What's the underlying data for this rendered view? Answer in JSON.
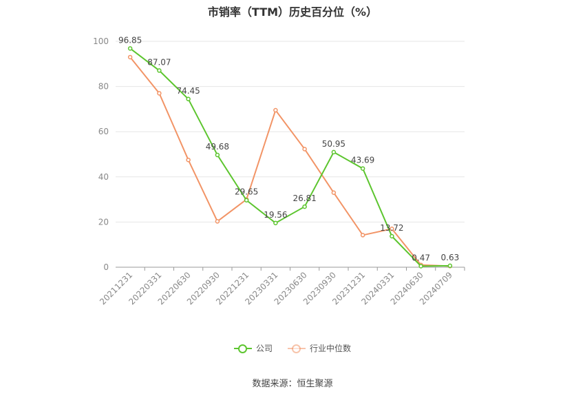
{
  "chart_data": {
    "type": "line",
    "title": "市销率（TTM）历史百分位（%）",
    "categories": [
      "20211231",
      "20220331",
      "20220630",
      "20220930",
      "20221231",
      "20230331",
      "20230630",
      "20230930",
      "20231231",
      "20240331",
      "20240630",
      "20240709"
    ],
    "ylim": [
      0,
      100
    ],
    "yticks": [
      0,
      20,
      40,
      60,
      80,
      100
    ],
    "grid": true,
    "legend_position": "bottom",
    "series": [
      {
        "name": "公司",
        "color": "#5cc52e",
        "values": [
          96.85,
          87.07,
          74.45,
          49.68,
          29.65,
          19.56,
          26.81,
          50.95,
          43.69,
          13.72,
          0.47,
          0.63
        ],
        "labels": [
          "96.85",
          "87.07",
          "74.45",
          "49.68",
          "29.65",
          "19.56",
          "26.81",
          "50.95",
          "43.69",
          "13.72",
          "0.47",
          "0.63"
        ]
      },
      {
        "name": "行业中位数",
        "color": "#f29466",
        "values": [
          93,
          77,
          47.5,
          20.3,
          30,
          69.5,
          52.3,
          33,
          14.2,
          17,
          1,
          0.5
        ]
      }
    ]
  },
  "source": "数据来源：恒生聚源"
}
